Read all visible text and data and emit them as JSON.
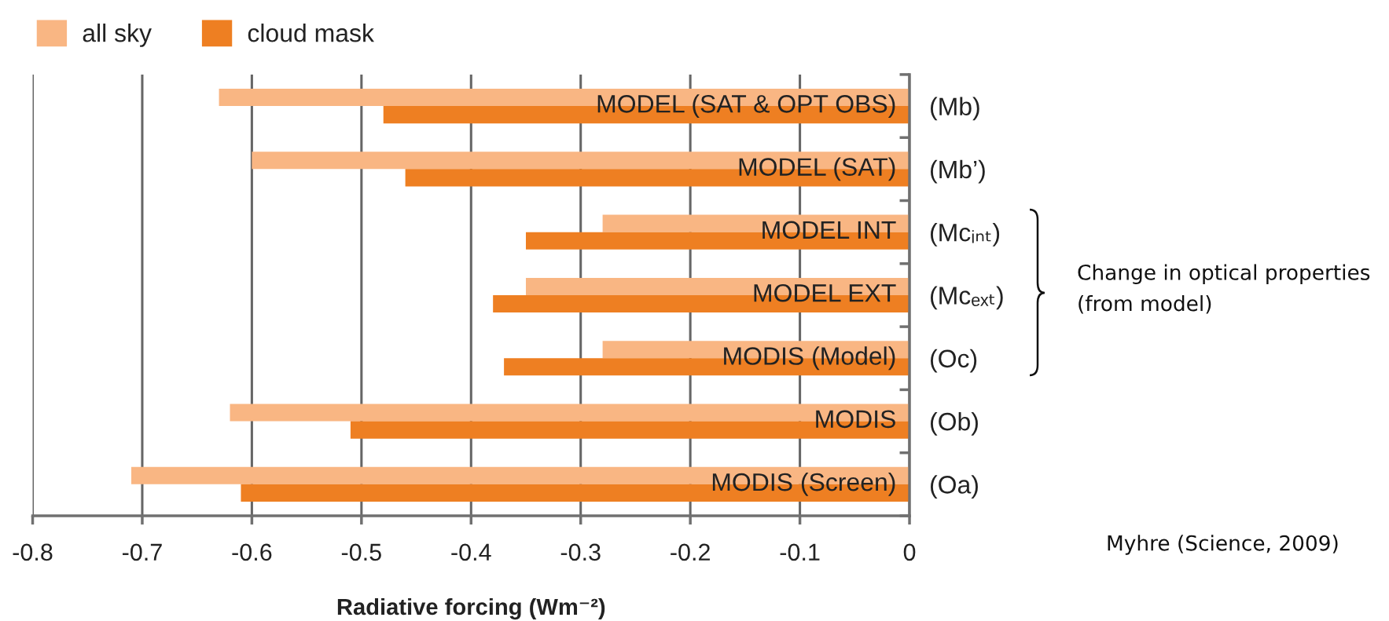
{
  "chart_data": {
    "type": "bar",
    "orientation": "horizontal",
    "categories": [
      "(Mb)",
      "(Mb’)",
      "(Mcᵢₙₜ)",
      "(Mcₑₓₜ)",
      "(Oc)",
      "(Ob)",
      "(Oa)"
    ],
    "series": [
      {
        "name": "all sky",
        "color": "#f9b683",
        "values": [
          -0.63,
          -0.6,
          -0.28,
          -0.35,
          -0.28,
          -0.62,
          -0.71
        ]
      },
      {
        "name": "cloud mask",
        "color": "#ee7f22",
        "values": [
          -0.48,
          -0.46,
          -0.35,
          -0.38,
          -0.37,
          -0.51,
          -0.61
        ]
      }
    ],
    "xlim": [
      -0.8,
      0
    ],
    "xticks": [
      -0.8,
      -0.7,
      -0.6,
      -0.5,
      -0.4,
      -0.3,
      -0.2,
      -0.1,
      0
    ],
    "xlabel": "Radiative forcing (Wm⁻²)",
    "grid": "x",
    "legend": "top left",
    "annotations": [
      {
        "text": "MODEL (SAT & OPT OBS)",
        "y": "(Mb)"
      },
      {
        "text": "MODEL (SAT)",
        "y": "(Mb’)"
      },
      {
        "text": "MODEL INT",
        "y": "(Mcᵢₙₜ)"
      },
      {
        "text": "MODEL EXT",
        "y": "(Mcₑₓₜ)"
      },
      {
        "text": "MODIS (Model)",
        "y": "(Oc)"
      },
      {
        "text": "MODIS",
        "y": "(Ob)"
      },
      {
        "text": "MODIS (Screen)",
        "y": "(Oa)"
      },
      "Change in optical properties\n(from model)",
      "Myhre (Science, 2009)"
    ]
  }
}
